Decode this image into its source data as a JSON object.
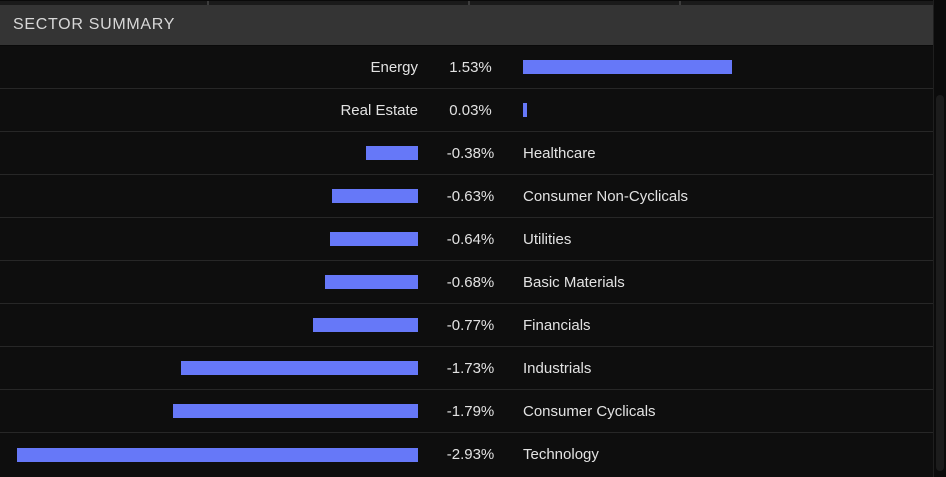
{
  "panel": {
    "title": "SECTOR SUMMARY"
  },
  "colors": {
    "bar": "#6678f8",
    "row_background": "#0e0e0e",
    "header_background": "#343434",
    "text": "#e2e2e2"
  },
  "chart_data": {
    "type": "bar",
    "orientation": "horizontal",
    "title": "SECTOR SUMMARY",
    "value_unit": "percent_change",
    "baseline": "center",
    "xlim": [
      -2.93,
      2.93
    ],
    "grid": false,
    "legend": false,
    "bar_color": "#6678f8",
    "categories": [
      "Energy",
      "Real Estate",
      "Healthcare",
      "Consumer Non-Cyclicals",
      "Utilities",
      "Basic Materials",
      "Financials",
      "Industrials",
      "Consumer Cyclicals",
      "Technology"
    ],
    "values": [
      1.53,
      0.03,
      -0.38,
      -0.63,
      -0.64,
      -0.68,
      -0.77,
      -1.73,
      -1.79,
      -2.93
    ],
    "value_labels": [
      "1.53%",
      "0.03%",
      "-0.38%",
      "-0.63%",
      "-0.64%",
      "-0.68%",
      "-0.77%",
      "-1.73%",
      "-1.79%",
      "-2.93%"
    ]
  }
}
